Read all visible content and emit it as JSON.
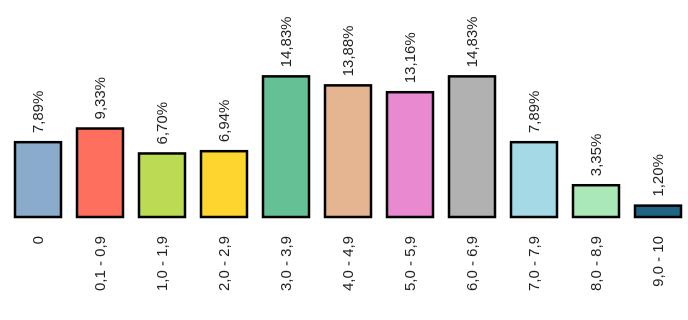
{
  "chart_data": {
    "type": "bar",
    "title": "",
    "xlabel": "",
    "ylabel": "",
    "ylim": [
      0,
      15.5
    ],
    "grid": false,
    "legend": "none",
    "categories": [
      "0",
      "0,1 - 0,9",
      "1,0 - 1,9",
      "2,0 - 2,9",
      "3,0 - 3,9",
      "4,0 - 4,9",
      "5,0 - 5,9",
      "6,0 - 6,9",
      "7,0 - 7,9",
      "8,0 - 8,9",
      "9,0 - 10"
    ],
    "values": [
      7.89,
      9.33,
      6.7,
      6.94,
      14.83,
      13.88,
      13.16,
      14.83,
      7.89,
      3.35,
      1.2
    ],
    "value_labels": [
      "7,89%",
      "9,33%",
      "6,70%",
      "6,94%",
      "14,83%",
      "13,88%",
      "13,16%",
      "14,83%",
      "7,89%",
      "3,35%",
      "1,20%"
    ],
    "colors": [
      "#8aabcb",
      "#ff6f5e",
      "#bbdb55",
      "#fdd52e",
      "#65c195",
      "#e5b591",
      "#e98ad1",
      "#b1b1b1",
      "#a5d9e5",
      "#abe8b8",
      "#1e6585"
    ]
  }
}
